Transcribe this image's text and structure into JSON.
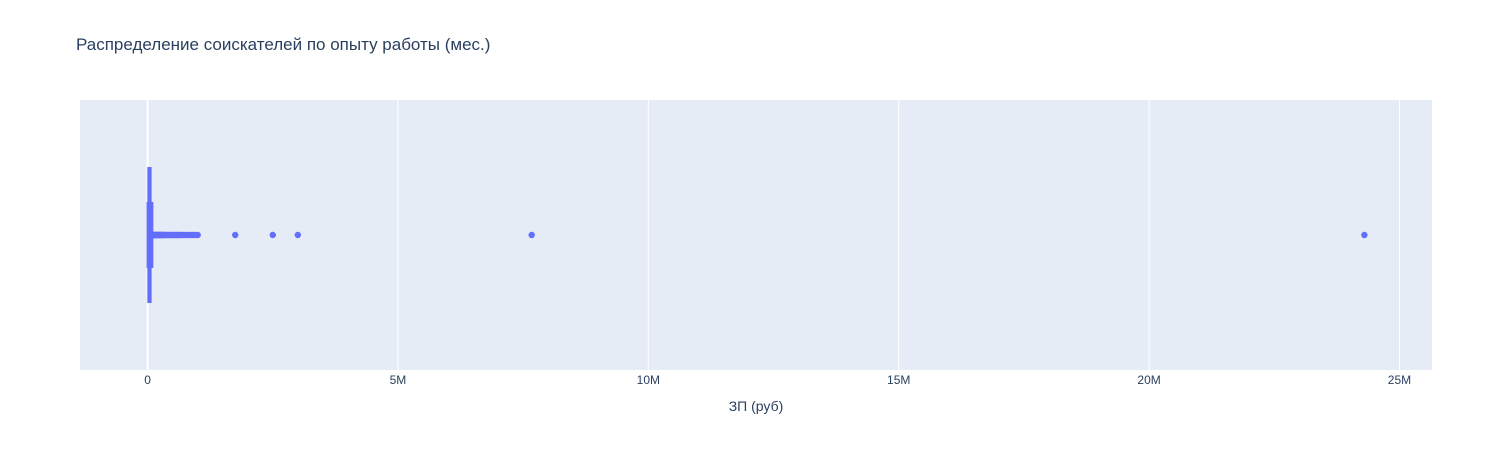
{
  "chart_data": {
    "type": "box",
    "orientation": "horizontal",
    "title": "Распределение соискателей по опыту работы (мес.)",
    "xlabel": "ЗП (руб)",
    "ylabel": "",
    "xlim": [
      -1350000,
      25650000
    ],
    "x_ticks": [
      0,
      5000000,
      10000000,
      15000000,
      20000000,
      25000000
    ],
    "x_tick_labels": [
      "0",
      "5M",
      "10M",
      "15M",
      "20M",
      "25M"
    ],
    "grid": true,
    "legend": "none",
    "series": [
      {
        "min": 0,
        "q1": 15000,
        "median": 40000,
        "q3": 60000,
        "upper_fence": 95000,
        "outliers": [
          100000,
          110000,
          120000,
          130000,
          140000,
          150000,
          160000,
          170000,
          180000,
          190000,
          200000,
          210000,
          220000,
          230000,
          240000,
          250000,
          260000,
          270000,
          280000,
          290000,
          300000,
          320000,
          340000,
          350000,
          370000,
          400000,
          420000,
          450000,
          480000,
          500000,
          520000,
          550000,
          580000,
          600000,
          620000,
          650000,
          680000,
          700000,
          750000,
          800000,
          850000,
          900000,
          950000,
          1000000,
          1750000,
          2500000,
          3000000,
          7670000,
          24300000
        ]
      }
    ],
    "colors": {
      "series": "#636efa",
      "plot_background": "#e5ecf6",
      "grid": "#ffffff",
      "text": "#2a3f5f"
    }
  }
}
